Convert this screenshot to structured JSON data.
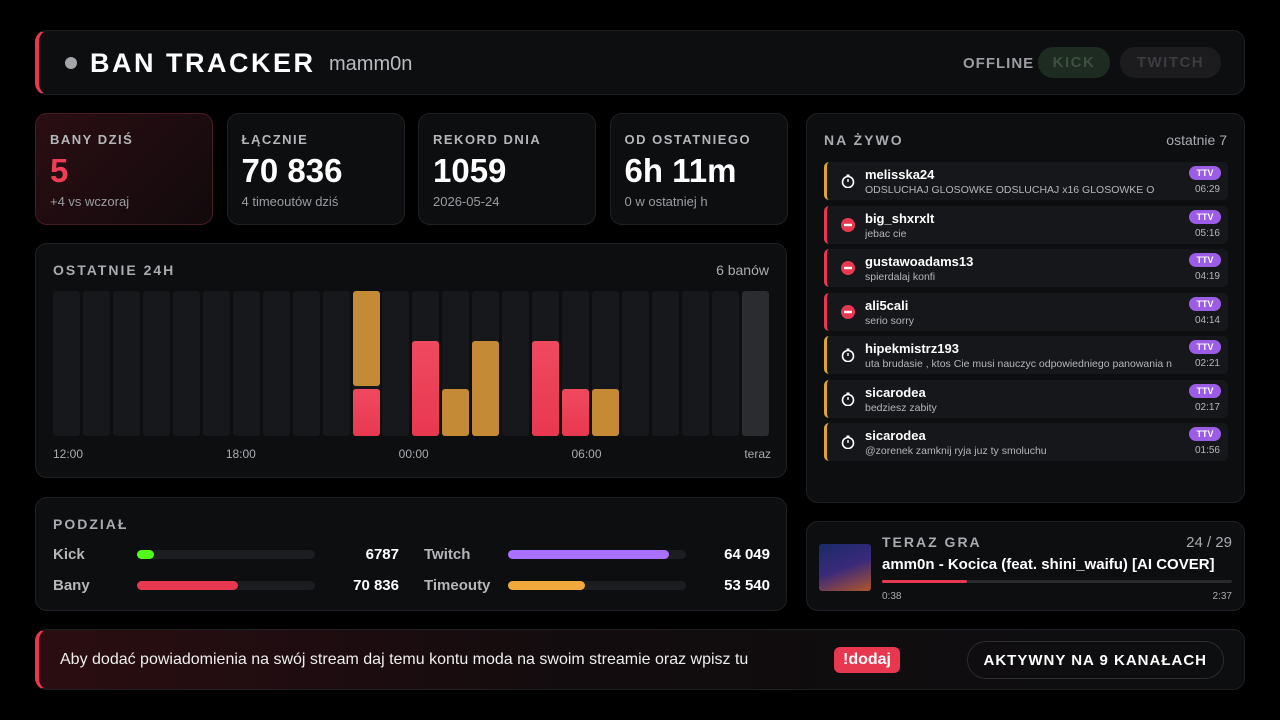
{
  "header": {
    "title": "BAN TRACKER",
    "user": "mamm0n",
    "status": "OFFLINE",
    "platforms": [
      "KICK",
      "TWITCH"
    ]
  },
  "stats": [
    {
      "label": "BANY DZIŚ",
      "value": "5",
      "sub": "+4 vs wczoraj"
    },
    {
      "label": "ŁĄCZNIE",
      "value": "70 836",
      "sub": "4 timeoutów dziś"
    },
    {
      "label": "REKORD DNIA",
      "value": "1059",
      "sub": "2026-05-24"
    },
    {
      "label": "OD OSTATNIEGO",
      "value": "6h 11m",
      "sub": "0 w ostatniej h"
    }
  ],
  "activity": {
    "title": "OSTATNIE 24H",
    "summary": "6 banów",
    "x_labels": [
      "12:00",
      "18:00",
      "00:00",
      "06:00",
      "teraz"
    ],
    "bans": [
      0,
      0,
      0,
      0,
      0,
      0,
      0,
      0,
      0,
      0,
      1,
      0,
      2,
      0,
      0,
      0,
      2,
      1,
      0,
      0,
      0,
      0,
      0,
      0
    ],
    "timeouts": [
      0,
      0,
      0,
      0,
      0,
      0,
      0,
      0,
      0,
      0,
      2,
      0,
      0,
      1,
      2,
      0,
      0,
      0,
      1,
      0,
      0,
      0,
      0,
      0
    ],
    "colors": {
      "bans": "#e8384f",
      "timeouts": "#c48a35"
    }
  },
  "split": {
    "title": "PODZIAŁ",
    "rows": [
      [
        {
          "name": "Kick",
          "value": 6787,
          "color": "#53fc18"
        },
        {
          "name": "Twitch",
          "value": 64049,
          "value_label": "64 049",
          "color": "#a970ff"
        }
      ],
      [
        {
          "name": "Bany",
          "value": 70836,
          "value_label": "70 836",
          "color": "#e8384f"
        },
        {
          "name": "Timeouty",
          "value": 53540,
          "value_label": "53 540",
          "color": "#f0a93b"
        }
      ]
    ]
  },
  "live": {
    "title": "NA ŻYWO",
    "summary": "ostatnie 7",
    "entries": [
      {
        "user": "melisska24",
        "message": "ODSLUCHAJ GLOSOWKE ODSLUCHAJ x16 GLOSOWKE O",
        "platform": "TTV",
        "time": "06:29",
        "action": "timeout"
      },
      {
        "user": "big_shxrxlt",
        "message": "jebac cie",
        "platform": "TTV",
        "time": "05:16",
        "action": "ban"
      },
      {
        "user": "gustawoadams13",
        "message": "spierdalaj konfi",
        "platform": "TTV",
        "time": "04:19",
        "action": "ban"
      },
      {
        "user": "ali5cali",
        "message": "serio sorry",
        "platform": "TTV",
        "time": "04:14",
        "action": "ban"
      },
      {
        "user": "hipekmistrz193",
        "message": "uta brudasie , ktos Cie musi nauczyc odpowiedniego panowania n",
        "platform": "TTV",
        "time": "02:21",
        "action": "timeout"
      },
      {
        "user": "sicarodea",
        "message": "bedziesz zabity",
        "platform": "TTV",
        "time": "02:17",
        "action": "timeout"
      },
      {
        "user": "sicarodea",
        "message": "@zorenek zamknij ryja juz ty smoluchu",
        "platform": "TTV",
        "time": "01:56",
        "action": "timeout"
      }
    ]
  },
  "now_playing": {
    "title": "TERAZ GRA",
    "position": "24 / 29",
    "track": "amm0n - Kocica (feat. shini_waifu) [AI COVER]",
    "elapsed": "0:38",
    "duration": "2:37"
  },
  "footer": {
    "message": "Aby dodać powiadomienia na swój stream daj temu kontu moda na swoim streamie oraz wpisz tu",
    "command": "!dodaj",
    "status": "AKTYWNY NA 9 KANAŁACH"
  }
}
